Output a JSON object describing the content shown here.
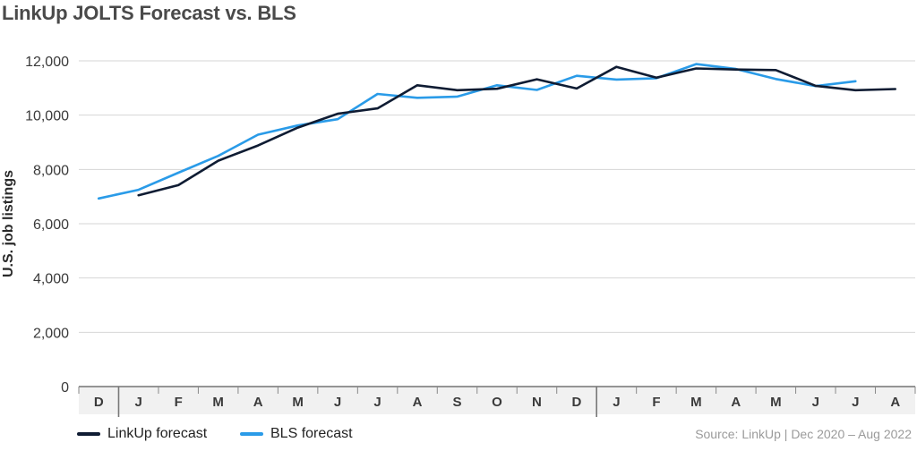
{
  "chart_data": {
    "type": "line",
    "title": "LinkUp JOLTS Forecast vs. BLS",
    "ylabel": "U.S. job listings",
    "ylim": [
      0,
      12000
    ],
    "yticks": [
      "0",
      "2,000",
      "4,000",
      "6,000",
      "8,000",
      "10,000",
      "12,000"
    ],
    "categories": [
      "D",
      "J",
      "F",
      "M",
      "A",
      "M",
      "J",
      "J",
      "A",
      "S",
      "O",
      "N",
      "D",
      "J",
      "F",
      "M",
      "A",
      "M",
      "J",
      "J",
      "A"
    ],
    "year_separators_after": [
      0,
      12
    ],
    "grid": "horizontal",
    "legend_position": "bottom-left",
    "series": [
      {
        "name": "LinkUp forecast",
        "color": "#0f1c33",
        "values": [
          null,
          7050,
          7420,
          8320,
          8880,
          9540,
          10050,
          10250,
          11100,
          10920,
          10970,
          11320,
          10980,
          11780,
          11380,
          11720,
          11680,
          11660,
          11080,
          10920,
          10960
        ]
      },
      {
        "name": "BLS forecast",
        "color": "#2a9be8",
        "values": [
          6930,
          7250,
          7880,
          8500,
          9280,
          9620,
          9850,
          10780,
          10640,
          10680,
          11100,
          10930,
          11450,
          11310,
          11360,
          11880,
          11700,
          11330,
          11070,
          11250,
          null
        ]
      }
    ]
  },
  "source_note": "Source: LinkUp  |  Dec 2020 – Aug 2022"
}
